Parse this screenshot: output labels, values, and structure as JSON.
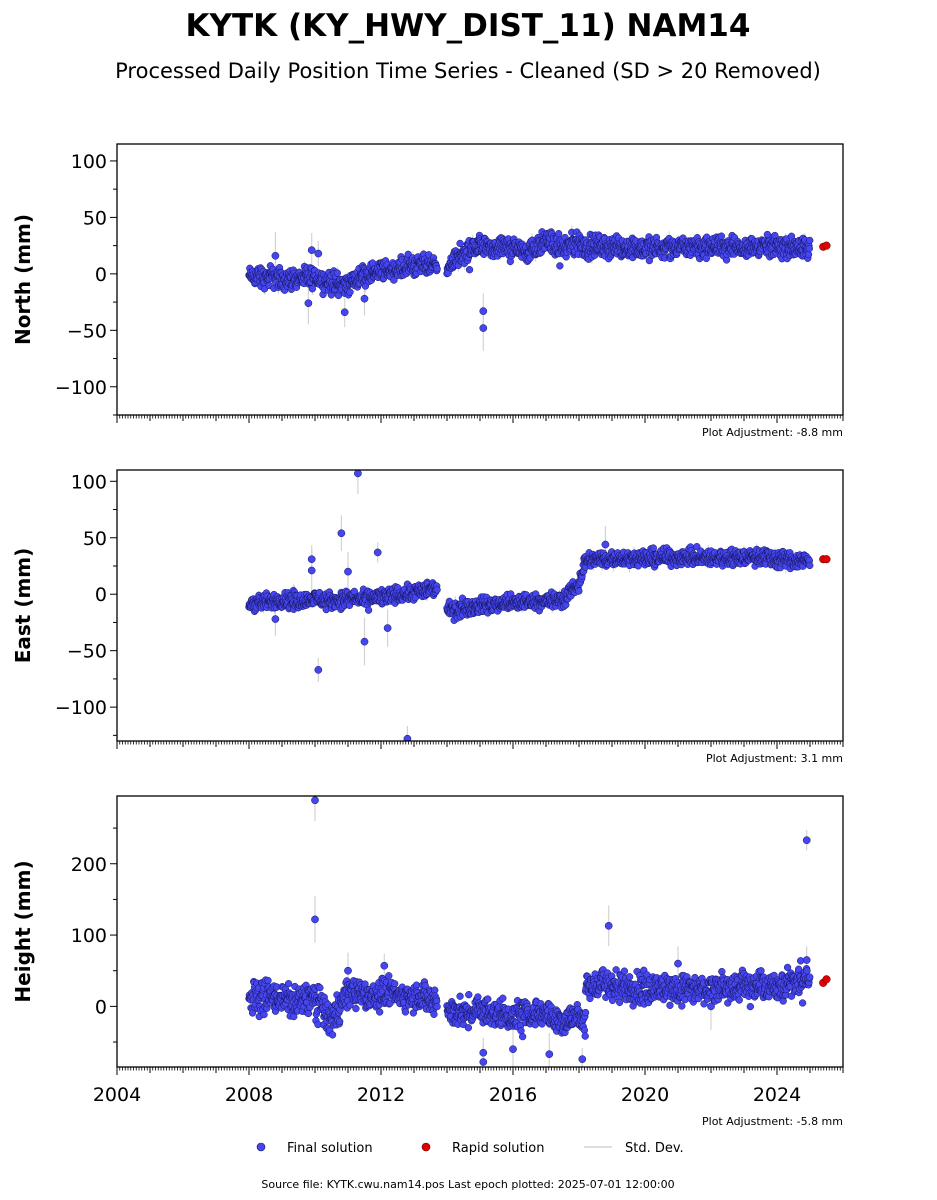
{
  "title": "KYTK (KY_HWY_DIST_11) NAM14",
  "subtitle": "Processed Daily Position Time Series - Cleaned (SD > 20 Removed)",
  "footer": "Source file: KYTK.cwu.nam14.pos  Last epoch plotted: 2025-07-01 12:00:00",
  "colors": {
    "final": "#4646f0",
    "final_edge": "#14145a",
    "rapid": "#e00000",
    "stddev": "#d3d3d3"
  },
  "legend": {
    "final": "Final solution",
    "rapid": "Rapid solution",
    "stddev": "Std. Dev."
  },
  "chart_data": [
    {
      "type": "scatter",
      "ylabel": "North (mm)",
      "adjustment": "Plot Adjustment: -8.8 mm",
      "xlim": [
        2004,
        2026
      ],
      "ylim": [
        -125,
        115
      ],
      "yticks": [
        -100,
        -50,
        0,
        50,
        100
      ],
      "xticks": [],
      "grid": false,
      "series": [
        {
          "key": "final",
          "segments": [
            {
              "x": [
                2008.0,
                2008.5,
                2009.0,
                2009.5,
                2010.0,
                2010.5,
                2011.0,
                2011.5,
                2012.0,
                2012.5,
                2013.0,
                2013.7
              ],
              "y": [
                -2,
                -3,
                -4,
                -5,
                -3,
                -8,
                -10,
                0,
                2,
                4,
                7,
                8
              ]
            },
            {
              "x": [
                2014.0,
                2014.5,
                2015.0,
                2015.5,
                2016.0,
                2016.5,
                2017.0,
                2017.5,
                2018.0,
                2018.2
              ],
              "y": [
                5,
                18,
                24,
                22,
                26,
                20,
                30,
                22,
                28,
                25
              ]
            },
            {
              "x": [
                2018.2,
                2019.0,
                2020.0,
                2021.0,
                2022.0,
                2023.0,
                2024.0,
                2025.0
              ],
              "y": [
                24,
                24,
                23,
                24,
                24,
                24,
                24,
                22
              ]
            }
          ],
          "outliers": {
            "x": [
              2008.8,
              2009.8,
              2009.9,
              2010.1,
              2010.9,
              2011.5,
              2015.1,
              2015.1
            ],
            "y": [
              16,
              -26,
              21,
              18,
              -34,
              -22,
              -33,
              -48
            ]
          }
        },
        {
          "key": "rapid",
          "x": [
            2025.4,
            2025.5
          ],
          "y": [
            24,
            25
          ]
        }
      ]
    },
    {
      "type": "scatter",
      "ylabel": "East (mm)",
      "adjustment": "Plot Adjustment: 3.1 mm",
      "xlim": [
        2004,
        2026
      ],
      "ylim": [
        -130,
        110
      ],
      "yticks": [
        -100,
        -50,
        0,
        50,
        100
      ],
      "xticks": [],
      "grid": false,
      "series": [
        {
          "key": "final",
          "segments": [
            {
              "x": [
                2008.0,
                2008.5,
                2009.0,
                2009.5,
                2010.0,
                2010.5,
                2011.0,
                2011.5,
                2012.0,
                2012.5,
                2013.0,
                2013.7
              ],
              "y": [
                -8,
                -7,
                -5,
                -6,
                -4,
                -6,
                -4,
                -5,
                -3,
                -1,
                1,
                6
              ]
            },
            {
              "x": [
                2014.0,
                2014.5,
                2015.0,
                2015.5,
                2016.0,
                2016.5,
                2017.0,
                2017.5,
                2018.0,
                2018.2
              ],
              "y": [
                -15,
                -12,
                -10,
                -9,
                -8,
                -7,
                -6,
                -5,
                10,
                30
              ]
            },
            {
              "x": [
                2018.2,
                2019.0,
                2020.0,
                2021.0,
                2022.0,
                2023.0,
                2024.0,
                2025.0
              ],
              "y": [
                31,
                31,
                32,
                33,
                32,
                33,
                32,
                29
              ]
            }
          ],
          "outliers": {
            "x": [
              2008.8,
              2009.9,
              2009.9,
              2010.1,
              2010.8,
              2011.0,
              2011.3,
              2011.5,
              2011.9,
              2012.2,
              2012.8,
              2018.8
            ],
            "y": [
              -22,
              31,
              21,
              -67,
              54,
              20,
              107,
              -42,
              37,
              -30,
              -128,
              44
            ]
          }
        },
        {
          "key": "rapid",
          "x": [
            2025.4,
            2025.5
          ],
          "y": [
            31,
            31
          ]
        }
      ]
    },
    {
      "type": "scatter",
      "ylabel": "Height (mm)",
      "adjustment": "Plot Adjustment: -5.8 mm",
      "xlim": [
        2004,
        2026
      ],
      "ylim": [
        -85,
        295
      ],
      "yticks": [
        0,
        100,
        200
      ],
      "xticks": [
        2004,
        2008,
        2012,
        2016,
        2020,
        2024
      ],
      "grid": false,
      "series": [
        {
          "key": "final",
          "segments": [
            {
              "x": [
                2008.0,
                2008.5,
                2009.0,
                2009.5,
                2010.0,
                2010.5,
                2011.0,
                2011.5,
                2012.0,
                2012.5,
                2013.0,
                2013.7
              ],
              "y": [
                12,
                15,
                10,
                8,
                15,
                -20,
                20,
                15,
                18,
                20,
                15,
                10
              ]
            },
            {
              "x": [
                2014.0,
                2014.5,
                2015.0,
                2015.5,
                2016.0,
                2016.5,
                2017.0,
                2017.5,
                2018.0,
                2018.2
              ],
              "y": [
                -5,
                -10,
                -5,
                -10,
                -15,
                -10,
                -5,
                -20,
                -15,
                -30
              ]
            },
            {
              "x": [
                2018.2,
                2019.0,
                2020.0,
                2021.0,
                2022.0,
                2023.0,
                2024.0,
                2025.0
              ],
              "y": [
                30,
                30,
                25,
                25,
                25,
                28,
                30,
                40
              ]
            }
          ],
          "outliers": {
            "x": [
              2010.0,
              2010.0,
              2011.0,
              2012.1,
              2015.1,
              2015.1,
              2016.0,
              2017.1,
              2018.1,
              2018.9,
              2021.0,
              2022.0,
              2024.9,
              2024.9
            ],
            "y": [
              289,
              122,
              50,
              57,
              -65,
              -78,
              -60,
              -67,
              -74,
              113,
              60,
              0,
              233,
              65
            ]
          }
        },
        {
          "key": "rapid",
          "x": [
            2025.4,
            2025.5
          ],
          "y": [
            33,
            38
          ]
        }
      ]
    }
  ]
}
